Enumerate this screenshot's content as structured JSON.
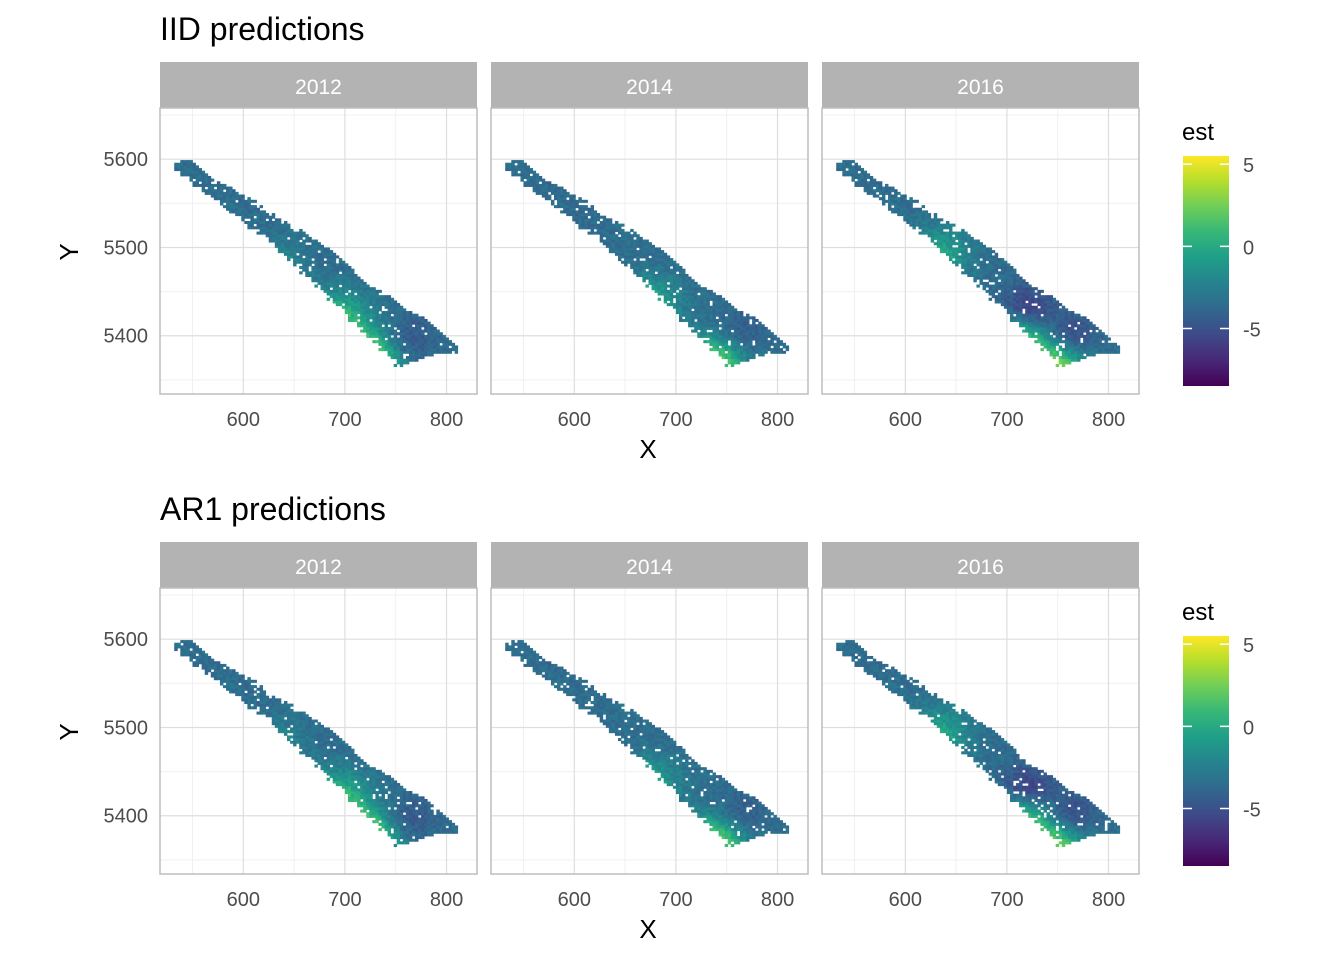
{
  "chart_data": [
    {
      "type": "heatmap",
      "title": "IID predictions",
      "xlabel": "X",
      "ylabel": "Y",
      "xlim": [
        518,
        830
      ],
      "ylim": [
        5334,
        5658
      ],
      "x_ticks": [
        600,
        700,
        800
      ],
      "y_ticks": [
        5400,
        5500,
        5600
      ],
      "grid": true,
      "legend": {
        "title": "est",
        "placement": "right",
        "ticks": [
          5,
          0,
          -5
        ],
        "range": [
          -8.5,
          5.5
        ],
        "colormap": "viridis"
      },
      "facets": [
        {
          "label": "2012",
          "hotspots": [
            {
              "x": 720,
              "y": 5372,
              "peak": 4.5
            },
            {
              "x": 690,
              "y": 5418,
              "peak": 1.5
            },
            {
              "x": 625,
              "y": 5470,
              "peak": -0.5
            }
          ],
          "cold_spots": [
            {
              "x": 760,
              "y": 5395,
              "value": -5
            }
          ]
        },
        {
          "label": "2014",
          "hotspots": [
            {
              "x": 735,
              "y": 5368,
              "peak": 3.5
            },
            {
              "x": 670,
              "y": 5435,
              "peak": 0.5
            }
          ],
          "cold_spots": [
            {
              "x": 760,
              "y": 5398,
              "value": -5
            },
            {
              "x": 575,
              "y": 5530,
              "value": -4
            }
          ]
        },
        {
          "label": "2016",
          "hotspots": [
            {
              "x": 745,
              "y": 5362,
              "peak": 3.5
            },
            {
              "x": 710,
              "y": 5395,
              "peak": 1.5
            },
            {
              "x": 630,
              "y": 5490,
              "peak": 0
            }
          ],
          "cold_spots": [
            {
              "x": 720,
              "y": 5430,
              "value": -6.5
            },
            {
              "x": 760,
              "y": 5398,
              "value": -6
            }
          ]
        }
      ]
    },
    {
      "type": "heatmap",
      "title": "AR1 predictions",
      "xlabel": "X",
      "ylabel": "Y",
      "xlim": [
        518,
        830
      ],
      "ylim": [
        5334,
        5658
      ],
      "x_ticks": [
        600,
        700,
        800
      ],
      "y_ticks": [
        5400,
        5500,
        5600
      ],
      "grid": true,
      "legend": {
        "title": "est",
        "placement": "right",
        "ticks": [
          5,
          0,
          -5
        ],
        "range": [
          -8.5,
          5.5
        ],
        "colormap": "viridis"
      },
      "facets": [
        {
          "label": "2012",
          "hotspots": [
            {
              "x": 718,
              "y": 5372,
              "peak": 5
            },
            {
              "x": 690,
              "y": 5418,
              "peak": 1.5
            },
            {
              "x": 625,
              "y": 5470,
              "peak": -0.5
            }
          ],
          "cold_spots": [
            {
              "x": 760,
              "y": 5395,
              "value": -5
            }
          ]
        },
        {
          "label": "2014",
          "hotspots": [
            {
              "x": 735,
              "y": 5368,
              "peak": 3.5
            },
            {
              "x": 670,
              "y": 5435,
              "peak": 0
            }
          ],
          "cold_spots": [
            {
              "x": 760,
              "y": 5398,
              "value": -5
            }
          ]
        },
        {
          "label": "2016",
          "hotspots": [
            {
              "x": 745,
              "y": 5362,
              "peak": 3
            },
            {
              "x": 712,
              "y": 5395,
              "peak": 1.5
            },
            {
              "x": 630,
              "y": 5490,
              "peak": 0
            }
          ],
          "cold_spots": [
            {
              "x": 720,
              "y": 5430,
              "value": -6.5
            },
            {
              "x": 760,
              "y": 5398,
              "value": -6
            }
          ]
        }
      ]
    }
  ],
  "colors": {
    "strip_background": "#b3b3b3",
    "strip_text": "#ffffff",
    "grid_major": "#dedede",
    "grid_minor": "#f0f0f0",
    "panel_border": "#bdbdbd",
    "axis_text": "#4d4d4d",
    "title_text": "#000000"
  }
}
